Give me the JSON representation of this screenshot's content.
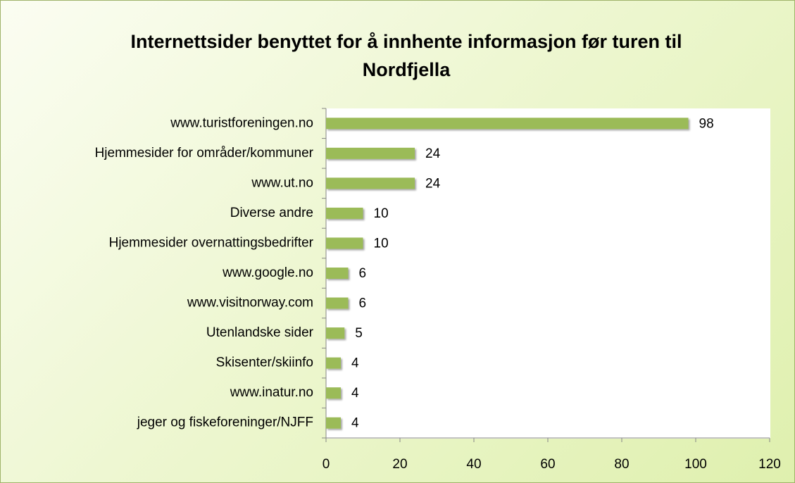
{
  "chart_data": {
    "type": "bar",
    "orientation": "horizontal",
    "title": "Internettsider benyttet for å innhente informasjon før turen til Nordfjella",
    "categories": [
      "www.turistforeningen.no",
      "Hjemmesider for områder/kommuner",
      "www.ut.no",
      "Diverse andre",
      "Hjemmesider overnattingsbedrifter",
      "www.google.no",
      "www.visitnorway.com",
      "Utenlandske sider",
      "Skisenter/skiinfo",
      "www.inatur.no",
      "jeger og fiskeforeninger/NJFF"
    ],
    "values": [
      98,
      24,
      24,
      10,
      10,
      6,
      6,
      5,
      4,
      4,
      4
    ],
    "color": "#9bbb59",
    "xlim": [
      0,
      120
    ],
    "xticks": [
      0,
      20,
      40,
      60,
      80,
      100,
      120
    ],
    "grid": false
  }
}
